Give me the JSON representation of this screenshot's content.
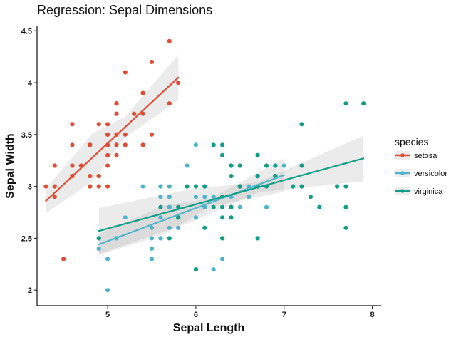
{
  "chart_data": {
    "type": "scatter",
    "title": "Regression: Sepal Dimensions",
    "xlabel": "Sepal Length",
    "ylabel": "Sepal Width",
    "xlim": [
      4.2,
      8.1
    ],
    "ylim": [
      1.85,
      4.55
    ],
    "x_ticks": [
      5,
      6,
      7,
      8
    ],
    "y_ticks": [
      2,
      2.5,
      3,
      3.5,
      4,
      4.5
    ],
    "grid": false,
    "legend": {
      "title": "species",
      "position": "right"
    },
    "series": [
      {
        "name": "setosa",
        "color": "#e14d33",
        "x": [
          5.1,
          4.9,
          4.7,
          4.6,
          5.0,
          5.4,
          4.6,
          5.0,
          4.4,
          4.9,
          5.4,
          4.8,
          4.8,
          4.3,
          5.8,
          5.7,
          5.4,
          5.1,
          5.7,
          5.1,
          5.4,
          5.1,
          4.6,
          5.1,
          4.8,
          5.0,
          5.0,
          5.2,
          5.2,
          4.7,
          4.8,
          5.4,
          5.2,
          5.5,
          4.9,
          5.0,
          5.5,
          4.9,
          4.4,
          5.1,
          5.0,
          4.5,
          4.4,
          5.0,
          5.1,
          4.8,
          5.1,
          4.6,
          5.3,
          5.0
        ],
        "y": [
          3.5,
          3.0,
          3.2,
          3.1,
          3.6,
          3.9,
          3.4,
          3.4,
          2.9,
          3.1,
          3.7,
          3.4,
          3.0,
          3.0,
          4.0,
          4.4,
          3.9,
          3.5,
          3.8,
          3.8,
          3.4,
          3.7,
          3.6,
          3.3,
          3.4,
          3.0,
          3.4,
          3.5,
          3.4,
          3.2,
          3.1,
          3.4,
          4.1,
          4.2,
          3.1,
          3.2,
          3.5,
          3.6,
          3.0,
          3.4,
          3.5,
          2.3,
          3.2,
          3.5,
          3.8,
          3.0,
          3.8,
          3.2,
          3.7,
          3.3
        ],
        "fit": {
          "x": [
            4.3,
            5.8
          ],
          "y": [
            2.86,
            4.05
          ],
          "ci_halfwidth": [
            0.12,
            0.23,
            0.1,
            0.22
          ]
        }
      },
      {
        "name": "versicolor",
        "color": "#4eb3cc",
        "x": [
          7.0,
          6.4,
          6.9,
          5.5,
          6.5,
          5.7,
          6.3,
          4.9,
          6.6,
          5.2,
          5.0,
          5.9,
          6.0,
          6.1,
          5.6,
          6.7,
          5.6,
          5.8,
          6.2,
          5.6,
          5.9,
          6.1,
          6.3,
          6.1,
          6.4,
          6.6,
          6.8,
          6.7,
          6.0,
          5.7,
          5.5,
          5.5,
          5.8,
          6.0,
          5.4,
          6.0,
          6.7,
          6.3,
          5.6,
          5.5,
          5.5,
          6.1,
          5.8,
          5.0,
          5.6,
          5.7,
          5.7,
          6.2,
          5.1,
          5.7
        ],
        "y": [
          3.2,
          3.2,
          3.1,
          2.3,
          2.8,
          2.8,
          3.3,
          2.4,
          2.9,
          2.7,
          2.0,
          3.0,
          2.2,
          2.9,
          2.9,
          3.1,
          3.0,
          2.7,
          2.2,
          2.5,
          3.2,
          2.8,
          2.5,
          2.8,
          2.9,
          3.0,
          2.8,
          3.0,
          2.9,
          2.6,
          2.4,
          2.4,
          2.7,
          2.7,
          3.0,
          3.4,
          3.1,
          2.3,
          3.0,
          2.5,
          2.6,
          3.0,
          2.6,
          2.3,
          2.7,
          3.0,
          2.9,
          2.9,
          2.5,
          2.8
        ],
        "fit": {
          "x": [
            4.9,
            7.0
          ],
          "y": [
            2.44,
            3.11
          ],
          "ci_halfwidth": [
            0.1,
            0.14,
            0.04,
            0.16
          ]
        }
      },
      {
        "name": "virginica",
        "color": "#0f9e87",
        "x": [
          6.3,
          5.8,
          7.1,
          6.3,
          6.5,
          7.6,
          4.9,
          7.3,
          6.7,
          7.2,
          6.5,
          6.4,
          6.8,
          5.7,
          5.8,
          6.4,
          6.5,
          7.7,
          7.7,
          6.0,
          6.9,
          5.6,
          7.7,
          6.3,
          6.7,
          7.2,
          6.2,
          6.1,
          6.4,
          7.2,
          7.4,
          7.9,
          6.4,
          6.3,
          6.1,
          7.7,
          6.3,
          6.4,
          6.0,
          6.9,
          6.7,
          6.9,
          5.8,
          6.8,
          6.7,
          6.7,
          6.3,
          6.5,
          6.2,
          5.9
        ],
        "y": [
          3.3,
          2.7,
          3.0,
          2.9,
          3.0,
          3.0,
          2.5,
          2.9,
          2.5,
          3.6,
          3.2,
          2.7,
          3.0,
          2.5,
          2.8,
          3.2,
          3.0,
          3.8,
          2.6,
          2.2,
          3.2,
          2.8,
          2.8,
          2.7,
          3.3,
          3.2,
          2.8,
          3.0,
          2.8,
          3.0,
          2.8,
          3.8,
          2.8,
          2.8,
          2.6,
          3.0,
          3.4,
          3.1,
          3.0,
          3.1,
          3.1,
          3.1,
          2.7,
          3.2,
          3.3,
          3.0,
          2.5,
          3.0,
          3.4,
          3.0
        ],
        "fit": {
          "x": [
            4.9,
            7.9
          ],
          "y": [
            2.57,
            3.27
          ],
          "ci_halfwidth": [
            0.22,
            0.16,
            0.05,
            0.22
          ]
        }
      }
    ]
  }
}
